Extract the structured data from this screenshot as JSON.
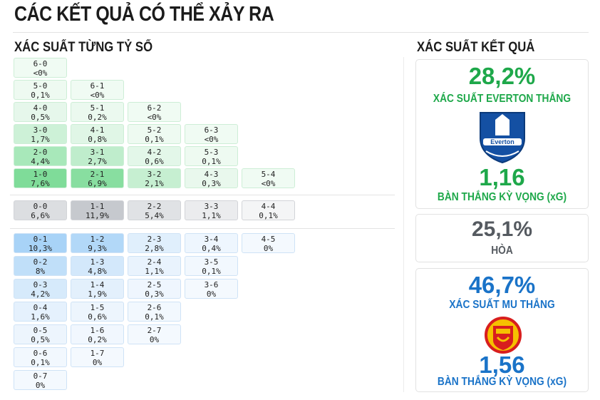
{
  "header": {
    "title": "CÁC KẾT QUẢ CÓ THỂ XẢY RA"
  },
  "score_grid": {
    "title": "XÁC SUẤT TỪNG TỶ SỐ",
    "groups": [
      {
        "rows": [
          [
            {
              "score": "6-0",
              "probability": "<0%",
              "color": "#f0fbf3"
            }
          ],
          [
            {
              "score": "5-0",
              "probability": "0,1%",
              "color": "#eefaf1"
            },
            {
              "score": "6-1",
              "probability": "<0%",
              "color": "#f0fbf3"
            }
          ],
          [
            {
              "score": "4-0",
              "probability": "0,5%",
              "color": "#e6f7eb"
            },
            {
              "score": "5-1",
              "probability": "0,2%",
              "color": "#ebf9ef"
            },
            {
              "score": "6-2",
              "probability": "<0%",
              "color": "#f0fbf3"
            }
          ],
          [
            {
              "score": "3-0",
              "probability": "1,7%",
              "color": "#cdf1d7"
            },
            {
              "score": "4-1",
              "probability": "0,8%",
              "color": "#e0f6e6"
            },
            {
              "score": "5-2",
              "probability": "0,1%",
              "color": "#eefaf1"
            },
            {
              "score": "6-3",
              "probability": "<0%",
              "color": "#f0fbf3"
            }
          ],
          [
            {
              "score": "2-0",
              "probability": "4,4%",
              "color": "#a8e8ba"
            },
            {
              "score": "3-1",
              "probability": "2,7%",
              "color": "#bfedcc"
            },
            {
              "score": "4-2",
              "probability": "0,6%",
              "color": "#e3f7e9"
            },
            {
              "score": "5-3",
              "probability": "0,1%",
              "color": "#eefaf1"
            }
          ],
          [
            {
              "score": "1-0",
              "probability": "7,6%",
              "color": "#7fdc99"
            },
            {
              "score": "2-1",
              "probability": "6,9%",
              "color": "#88dea0"
            },
            {
              "score": "3-2",
              "probability": "2,1%",
              "color": "#c6efd1"
            },
            {
              "score": "4-3",
              "probability": "0,3%",
              "color": "#e9f8ed"
            },
            {
              "score": "5-4",
              "probability": "<0%",
              "color": "#f0fbf3"
            }
          ]
        ]
      },
      {
        "rows": [
          [
            {
              "score": "0-0",
              "probability": "6,6%",
              "color": "#dcdee1"
            },
            {
              "score": "1-1",
              "probability": "11,9%",
              "color": "#c6c9ce"
            },
            {
              "score": "2-2",
              "probability": "5,4%",
              "color": "#e0e2e5"
            },
            {
              "score": "3-3",
              "probability": "1,1%",
              "color": "#ebecee"
            },
            {
              "score": "4-4",
              "probability": "0,1%",
              "color": "#f4f5f6"
            }
          ]
        ]
      },
      {
        "rows": [
          [
            {
              "score": "0-1",
              "probability": "10,3%",
              "color": "#a8d3f7"
            },
            {
              "score": "1-2",
              "probability": "9,3%",
              "color": "#b2d8f8"
            },
            {
              "score": "2-3",
              "probability": "2,8%",
              "color": "#e0effc"
            },
            {
              "score": "3-4",
              "probability": "0,4%",
              "color": "#eef6fe"
            },
            {
              "score": "4-5",
              "probability": "0%",
              "color": "#f4f9fe"
            }
          ],
          [
            {
              "score": "0-2",
              "probability": "8%",
              "color": "#c0dff9"
            },
            {
              "score": "1-3",
              "probability": "4,8%",
              "color": "#d3e8fb"
            },
            {
              "score": "2-4",
              "probability": "1,1%",
              "color": "#e9f3fd"
            },
            {
              "score": "3-5",
              "probability": "0,1%",
              "color": "#f2f8fe"
            }
          ],
          [
            {
              "score": "0-3",
              "probability": "4,2%",
              "color": "#d6eafb"
            },
            {
              "score": "1-4",
              "probability": "1,9%",
              "color": "#e3f0fc"
            },
            {
              "score": "2-5",
              "probability": "0,3%",
              "color": "#eff6fe"
            },
            {
              "score": "3-6",
              "probability": "0%",
              "color": "#f4f9fe"
            }
          ],
          [
            {
              "score": "0-4",
              "probability": "1,6%",
              "color": "#e5f1fd"
            },
            {
              "score": "1-5",
              "probability": "0,6%",
              "color": "#edf5fd"
            },
            {
              "score": "2-6",
              "probability": "0,1%",
              "color": "#f2f8fe"
            }
          ],
          [
            {
              "score": "0-5",
              "probability": "0,5%",
              "color": "#edf5fd"
            },
            {
              "score": "1-6",
              "probability": "0,2%",
              "color": "#f1f7fe"
            },
            {
              "score": "2-7",
              "probability": "0%",
              "color": "#f4f9fe"
            }
          ],
          [
            {
              "score": "0-6",
              "probability": "0,1%",
              "color": "#f2f8fe"
            },
            {
              "score": "1-7",
              "probability": "0%",
              "color": "#f4f9fe"
            }
          ],
          [
            {
              "score": "0-7",
              "probability": "0%",
              "color": "#f4f9fe"
            }
          ]
        ]
      }
    ]
  },
  "outcomes": {
    "title": "XÁC SUẤT KẾT QUẢ",
    "cards": [
      {
        "probability": "28,2%",
        "label": "XÁC SUẤT EVERTON THẮNG",
        "xg": "1,16",
        "xg_label": "BÀN THẮNG KỲ VỌNG (xG)"
      },
      {
        "probability": "25,1%",
        "label": "HÒA"
      },
      {
        "probability": "46,7%",
        "label": "XÁC SUẤT MU THẮNG",
        "xg": "1,56",
        "xg_label": "BÀN THẮNG KỲ VỌNG (xG)"
      }
    ]
  }
}
